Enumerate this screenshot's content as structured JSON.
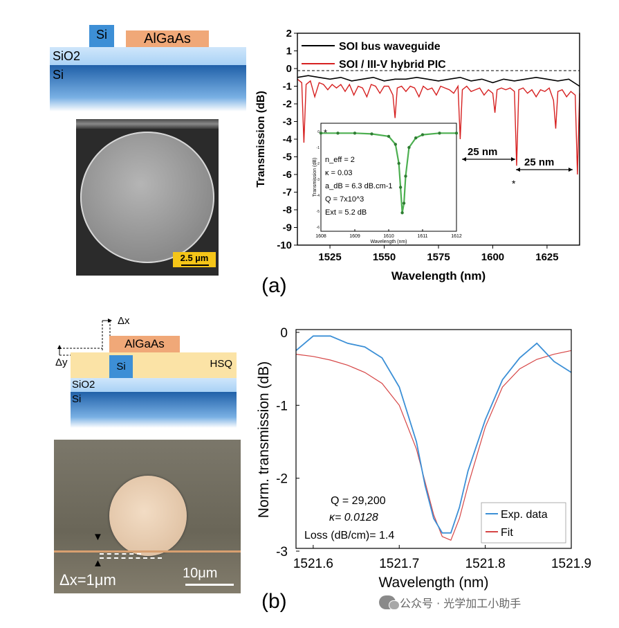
{
  "panel_a": {
    "label": "(a)",
    "schematic": {
      "si": "Si",
      "algaas": "AlGaAs",
      "sio2": "SiO2",
      "substrate": "Si"
    },
    "sem_scale": "2.5 µm",
    "chart": {
      "type": "line",
      "xlabel": "Wavelength (nm)",
      "ylabel": "Transmission (dB)",
      "xticks": [
        "1525",
        "1550",
        "1575",
        "1600",
        "1625"
      ],
      "yticks": [
        "2",
        "1",
        "0",
        "-1",
        "-2",
        "-3",
        "-4",
        "-5",
        "-6",
        "-7",
        "-8",
        "-9",
        "-10"
      ],
      "legend": [
        "SOI bus waveguide",
        "SOI / III-V hybrid PIC"
      ],
      "annotations": [
        "25 nm",
        "25 nm",
        "*"
      ],
      "inset": {
        "xticks": [
          "1608",
          "1609",
          "1610",
          "1611",
          "1612"
        ],
        "xlabel": "Wavelength (nm)",
        "ylabel": "Transmission (dB)",
        "yticks": [
          "0",
          "-1",
          "-2",
          "-3",
          "-4",
          "-5",
          "-6"
        ],
        "star": "*",
        "params": [
          "n_eff = 2",
          "κ = 0.03",
          "a_dB = 6.3 dB.cm-1",
          "Q = 7x10^3",
          "Ext = 5.2 dB"
        ]
      }
    }
  },
  "panel_b": {
    "label": "(b)",
    "schematic": {
      "dx": "Δx",
      "dy": "Δy",
      "algaas": "AlGaAs",
      "si": "Si",
      "hsq": "HSQ",
      "sio2": "SiO2",
      "substrate": "Si"
    },
    "micro_dx": "Δx=1μm",
    "micro_scale": "10μm",
    "chart": {
      "type": "line",
      "xlabel": "Wavelength (nm)",
      "ylabel": "Norm. transmission (dB)",
      "xticks": [
        "1521.6",
        "1521.7",
        "1521.8",
        "1521.9"
      ],
      "yticks": [
        "0",
        "-1",
        "-2",
        "-3"
      ],
      "legend": [
        "Exp. data",
        "Fit"
      ],
      "annotations": [
        "Q = 29,200",
        "κ= 0.0128",
        "Loss (dB/cm)= 1.4"
      ]
    }
  },
  "chart_data": [
    {
      "type": "line",
      "title": "",
      "xlabel": "Wavelength (nm)",
      "ylabel": "Transmission (dB)",
      "xlim": [
        1510,
        1640
      ],
      "ylim": [
        -10,
        2
      ],
      "series": [
        {
          "name": "SOI bus waveguide",
          "color": "#000000",
          "x": [
            1510,
            1515,
            1520,
            1525,
            1530,
            1535,
            1540,
            1545,
            1550,
            1555,
            1560,
            1565,
            1570,
            1575,
            1580,
            1585,
            1590,
            1595,
            1600,
            1605,
            1610,
            1615,
            1620,
            1625,
            1630,
            1635,
            1640
          ],
          "y": [
            -0.5,
            -0.4,
            -0.5,
            -0.6,
            -0.5,
            -0.7,
            -0.6,
            -0.5,
            -0.7,
            -0.6,
            -0.6,
            -0.5,
            -0.6,
            -0.7,
            -0.6,
            -0.5,
            -0.7,
            -0.6,
            -0.8,
            -0.6,
            -0.7,
            -0.6,
            -0.5,
            -0.6,
            -0.7,
            -0.6,
            -1.0
          ]
        },
        {
          "name": "SOI / III-V hybrid PIC",
          "color": "#d62020",
          "x": [
            1510,
            1512,
            1513,
            1514,
            1516,
            1518,
            1520,
            1522,
            1524,
            1526,
            1528,
            1530,
            1532,
            1534,
            1536,
            1538,
            1540,
            1542,
            1544,
            1546,
            1548,
            1550,
            1552,
            1554,
            1555,
            1556,
            1558,
            1560,
            1562,
            1564,
            1566,
            1568,
            1570,
            1572,
            1574,
            1576,
            1578,
            1580,
            1582,
            1584,
            1585,
            1586,
            1588,
            1590,
            1592,
            1594,
            1596,
            1598,
            1600,
            1601,
            1602,
            1604,
            1606,
            1608,
            1610,
            1611,
            1612,
            1614,
            1616,
            1618,
            1620,
            1622,
            1624,
            1626,
            1628,
            1629,
            1630,
            1632,
            1634,
            1636,
            1638,
            1639,
            1640
          ],
          "y": [
            -0.6,
            -0.8,
            -4.2,
            -0.9,
            -0.7,
            -1.6,
            -0.8,
            -0.9,
            -1.2,
            -0.9,
            -1.1,
            -0.9,
            -1.3,
            -0.9,
            -1.5,
            -1.0,
            -1.1,
            -1.6,
            -0.9,
            -1.0,
            -1.4,
            -1.0,
            -1.0,
            -1.5,
            -2.8,
            -1.1,
            -1.0,
            -1.3,
            -1.0,
            -1.1,
            -1.6,
            -1.0,
            -1.2,
            -1.1,
            -1.5,
            -1.0,
            -1.1,
            -1.2,
            -1.4,
            -1.0,
            -4.0,
            -1.2,
            -1.0,
            -1.3,
            -1.2,
            -1.1,
            -1.5,
            -1.2,
            -1.4,
            -2.5,
            -1.2,
            -1.1,
            -1.2,
            -1.1,
            -1.3,
            -5.5,
            -1.2,
            -1.1,
            -1.4,
            -1.2,
            -1.6,
            -1.2,
            -1.3,
            -1.1,
            -1.8,
            -3.4,
            -1.3,
            -1.2,
            -1.6,
            -1.3,
            -1.5,
            -6.0,
            -1.4
          ]
        }
      ],
      "inset": {
        "type": "line",
        "xlim": [
          1608,
          1612
        ],
        "ylim": [
          -6,
          0
        ],
        "series": [
          {
            "name": "measured",
            "color": "#4caf50",
            "x": [
              1608,
              1608.5,
              1609,
              1609.5,
              1610,
              1610.2,
              1610.3,
              1610.35,
              1610.4,
              1610.45,
              1610.5,
              1610.6,
              1610.8,
              1611,
              1611.5,
              1612
            ],
            "y": [
              -0.1,
              -0.1,
              -0.1,
              -0.15,
              -0.3,
              -0.8,
              -2.0,
              -3.5,
              -5.1,
              -4.5,
              -2.8,
              -1.0,
              -0.4,
              -0.2,
              -0.1,
              -0.1
            ]
          }
        ]
      }
    },
    {
      "type": "line",
      "title": "",
      "xlabel": "Wavelength (nm)",
      "ylabel": "Norm. transmission (dB)",
      "xlim": [
        1521.6,
        1521.9
      ],
      "ylim": [
        -3,
        0
      ],
      "series": [
        {
          "name": "Exp. data",
          "color": "#3b8fd6",
          "x": [
            1521.58,
            1521.6,
            1521.62,
            1521.64,
            1521.66,
            1521.68,
            1521.7,
            1521.72,
            1521.73,
            1521.74,
            1521.75,
            1521.76,
            1521.77,
            1521.78,
            1521.8,
            1521.82,
            1521.84,
            1521.86,
            1521.88,
            1521.9
          ],
          "y": [
            -0.25,
            -0.05,
            -0.05,
            -0.15,
            -0.2,
            -0.35,
            -0.75,
            -1.5,
            -2.1,
            -2.55,
            -2.75,
            -2.75,
            -2.4,
            -1.9,
            -1.2,
            -0.65,
            -0.35,
            -0.15,
            -0.4,
            -0.55
          ]
        },
        {
          "name": "Fit",
          "color": "#d64545",
          "x": [
            1521.58,
            1521.6,
            1521.62,
            1521.64,
            1521.66,
            1521.68,
            1521.7,
            1521.72,
            1521.73,
            1521.74,
            1521.75,
            1521.76,
            1521.77,
            1521.78,
            1521.8,
            1521.82,
            1521.84,
            1521.86,
            1521.88,
            1521.9
          ],
          "y": [
            -0.3,
            -0.33,
            -0.38,
            -0.45,
            -0.55,
            -0.7,
            -1.0,
            -1.6,
            -2.05,
            -2.5,
            -2.8,
            -2.85,
            -2.55,
            -2.1,
            -1.3,
            -0.75,
            -0.5,
            -0.37,
            -0.3,
            -0.25
          ]
        }
      ]
    }
  ]
}
